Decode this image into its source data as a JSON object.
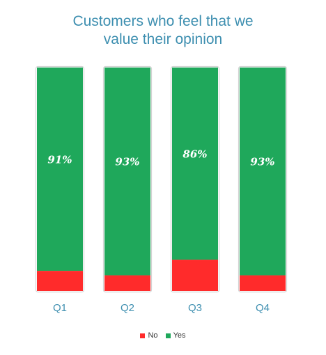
{
  "chart_data": {
    "type": "bar",
    "stacked": true,
    "normalized": true,
    "title_lines": [
      "Customers who feel that we",
      "value their opinion"
    ],
    "categories": [
      "Q1",
      "Q2",
      "Q3",
      "Q4"
    ],
    "series": [
      {
        "name": "Yes",
        "color": "#1fa85b",
        "values": [
          91,
          93,
          86,
          93
        ]
      },
      {
        "name": "No",
        "color": "#ff2b2b",
        "values": [
          9,
          7,
          14,
          7
        ]
      }
    ],
    "value_labels": [
      "91%",
      "93%",
      "86%",
      "93%"
    ],
    "ylim": [
      0,
      100
    ],
    "grid": false,
    "legend_position": "bottom",
    "legend": [
      {
        "label": "No",
        "color": "#ff2b2b"
      },
      {
        "label": "Yes",
        "color": "#1fa85b"
      }
    ]
  }
}
